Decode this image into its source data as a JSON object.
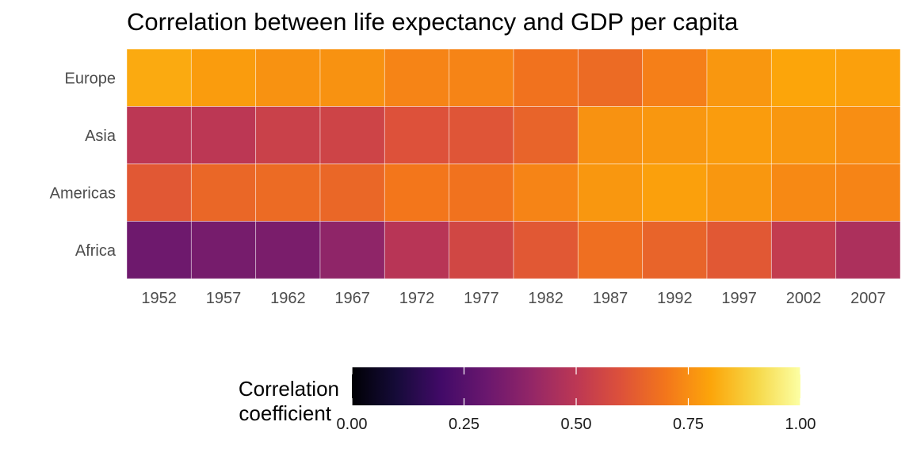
{
  "chart_data": {
    "type": "heatmap",
    "title": "Correlation between life expectancy and GDP per capita",
    "x": [
      "1952",
      "1957",
      "1962",
      "1967",
      "1972",
      "1977",
      "1982",
      "1987",
      "1992",
      "1997",
      "2002",
      "2007"
    ],
    "y": [
      "Europe",
      "Asia",
      "Americas",
      "Africa"
    ],
    "values": [
      [
        0.81,
        0.78,
        0.76,
        0.76,
        0.73,
        0.73,
        0.69,
        0.67,
        0.72,
        0.77,
        0.8,
        0.79
      ],
      [
        0.5,
        0.5,
        0.54,
        0.55,
        0.6,
        0.61,
        0.65,
        0.76,
        0.77,
        0.78,
        0.77,
        0.75
      ],
      [
        0.62,
        0.66,
        0.67,
        0.66,
        0.7,
        0.69,
        0.73,
        0.77,
        0.79,
        0.77,
        0.74,
        0.73
      ],
      [
        0.31,
        0.33,
        0.34,
        0.39,
        0.49,
        0.56,
        0.62,
        0.68,
        0.65,
        0.62,
        0.52,
        0.46
      ]
    ],
    "colorscale": "inferno",
    "legend": {
      "title_line1": "Correlation",
      "title_line2": "coefficient",
      "range": [
        0,
        1
      ],
      "ticks": [
        "0.00",
        "0.25",
        "0.50",
        "0.75",
        "1.00"
      ],
      "placement": "bottom"
    }
  }
}
